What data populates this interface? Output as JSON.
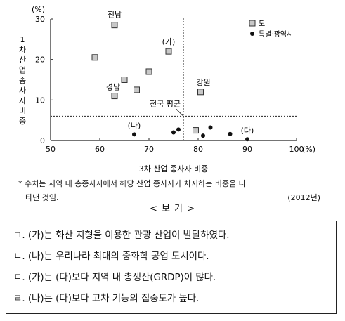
{
  "chart_data": {
    "type": "scatter",
    "title": "",
    "xlabel": "3차 산업 종사자 비중",
    "x_unit": "(%)",
    "ylabel": "1차 산업 종사자 비중",
    "y_unit": "(%)",
    "xlim": [
      50,
      100
    ],
    "ylim": [
      0,
      30
    ],
    "x_ticks": [
      50,
      60,
      70,
      80,
      90,
      100
    ],
    "y_ticks": [
      0,
      10,
      20,
      30
    ],
    "grid": false,
    "legend_position": "top-right",
    "reference_lines": {
      "x": 77,
      "y": 6,
      "label": "전국 평균"
    },
    "series": [
      {
        "name": "도",
        "marker": "square",
        "points": [
          {
            "x": 59,
            "y": 20.5,
            "label": ""
          },
          {
            "x": 63,
            "y": 28.5,
            "label": "전남"
          },
          {
            "x": 63,
            "y": 11,
            "label": "경남"
          },
          {
            "x": 65,
            "y": 15,
            "label": ""
          },
          {
            "x": 67.5,
            "y": 12.5,
            "label": ""
          },
          {
            "x": 70,
            "y": 17,
            "label": ""
          },
          {
            "x": 74,
            "y": 22,
            "label": "(가)"
          },
          {
            "x": 79.5,
            "y": 2.5,
            "label": ""
          },
          {
            "x": 80.5,
            "y": 12,
            "label": "강원"
          }
        ]
      },
      {
        "name": "특별·광역시",
        "marker": "circle",
        "points": [
          {
            "x": 67,
            "y": 1.5,
            "label": "(나)"
          },
          {
            "x": 75,
            "y": 2,
            "label": ""
          },
          {
            "x": 76,
            "y": 2.7,
            "label": ""
          },
          {
            "x": 81,
            "y": 1.2,
            "label": ""
          },
          {
            "x": 82.5,
            "y": 3.2,
            "label": ""
          },
          {
            "x": 86.5,
            "y": 1.6,
            "label": ""
          },
          {
            "x": 90,
            "y": 0.3,
            "label": "(다)"
          }
        ]
      }
    ]
  },
  "footnote": {
    "line1": "* 수치는 지역 내 총종사자에서 해당 산업 종사자가 차지하는 비중을 나",
    "line2": "타낸 것임.",
    "year": "(2012년)"
  },
  "bogi": {
    "title": "< 보 기 >",
    "items": [
      "ㄱ. (가)는 화산 지형을 이용한 관광 산업이 발달하였다.",
      "ㄴ. (나)는 우리나라 최대의 중화학 공업 도시이다.",
      "ㄷ. (가)는 (다)보다 지역 내 총생산(GRDP)이 많다.",
      "ㄹ. (나)는 (다)보다 고차 기능의 집중도가 높다."
    ]
  },
  "colors": {
    "square_fill": "#c8c8c8",
    "square_stroke": "#333333",
    "circle_fill": "#111111",
    "axis": "#222222"
  }
}
